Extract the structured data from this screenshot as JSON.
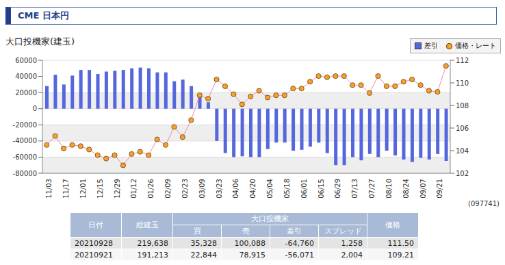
{
  "header": {
    "title": "CME 日本円",
    "subtitle": "大口投機家(建玉)"
  },
  "chart_data": {
    "type": "bar",
    "categories": [
      "11/03",
      null,
      "11/17",
      null,
      "12/01",
      null,
      "12/15",
      null,
      "12/29",
      null,
      "01/12",
      null,
      "01/26",
      null,
      "02/09",
      null,
      "02/23",
      null,
      "03/09",
      null,
      "03/23",
      null,
      "04/06",
      null,
      "04/20",
      null,
      "05/04",
      null,
      "05/18",
      null,
      "06/01",
      null,
      "06/15",
      null,
      "06/29",
      null,
      "07/13",
      null,
      "07/27",
      null,
      "08/10",
      null,
      "08/24",
      null,
      "09/07",
      null,
      "09/21",
      null
    ],
    "series": [
      {
        "name": "差引",
        "type": "bar",
        "color": "#5567dc",
        "values": [
          28000,
          42000,
          30000,
          41000,
          48000,
          48000,
          43000,
          46000,
          47000,
          48000,
          50000,
          51000,
          50000,
          45000,
          45000,
          34000,
          36000,
          28000,
          19000,
          8000,
          -40000,
          -55000,
          -60000,
          -59000,
          -60000,
          -60000,
          -50000,
          -42000,
          -42000,
          -52000,
          -51000,
          -47000,
          -42000,
          -55000,
          -70000,
          -70000,
          -60000,
          -64000,
          -56000,
          -60000,
          -52000,
          -58000,
          -63000,
          -66000,
          -61000,
          -63000,
          -56071,
          -64760
        ]
      },
      {
        "name": "価格・レート",
        "type": "line",
        "axis": "y2",
        "marker": "circle",
        "color": "#f5a030",
        "values": [
          104.5,
          105.3,
          104.2,
          104.5,
          104.4,
          104.1,
          103.6,
          103.3,
          103.6,
          102.7,
          103.7,
          103.9,
          103.6,
          105.0,
          104.5,
          106.1,
          105.2,
          106.7,
          108.9,
          108.6,
          110.3,
          109.7,
          109.0,
          108.1,
          108.8,
          109.3,
          108.7,
          108.9,
          108.9,
          109.5,
          109.5,
          110.1,
          110.6,
          110.5,
          110.6,
          110.6,
          109.8,
          109.8,
          109.1,
          110.6,
          109.7,
          109.7,
          110.1,
          110.3,
          109.8,
          109.3,
          109.21,
          111.5
        ]
      }
    ],
    "ylim": [
      -80000,
      60000
    ],
    "yticks": [
      -80000,
      -60000,
      -40000,
      -20000,
      0,
      20000,
      40000,
      60000
    ],
    "y2lim": [
      102,
      112
    ],
    "y2ticks": [
      102,
      104,
      106,
      108,
      110,
      112
    ],
    "grid": true,
    "legend": "top-right"
  },
  "code": "(097741)",
  "table": {
    "header": [
      [
        "日付",
        "総建玉",
        "大口投機家",
        "価格"
      ],
      [
        "買",
        "売",
        "差引",
        "スプレッド"
      ]
    ],
    "rows": [
      [
        "20210928",
        "219,638",
        "35,328",
        "100,088",
        "-64,760",
        "1,258",
        "111.50"
      ],
      [
        "20210921",
        "191,213",
        "22,844",
        "78,915",
        "-56,071",
        "2,004",
        "109.21"
      ]
    ]
  }
}
